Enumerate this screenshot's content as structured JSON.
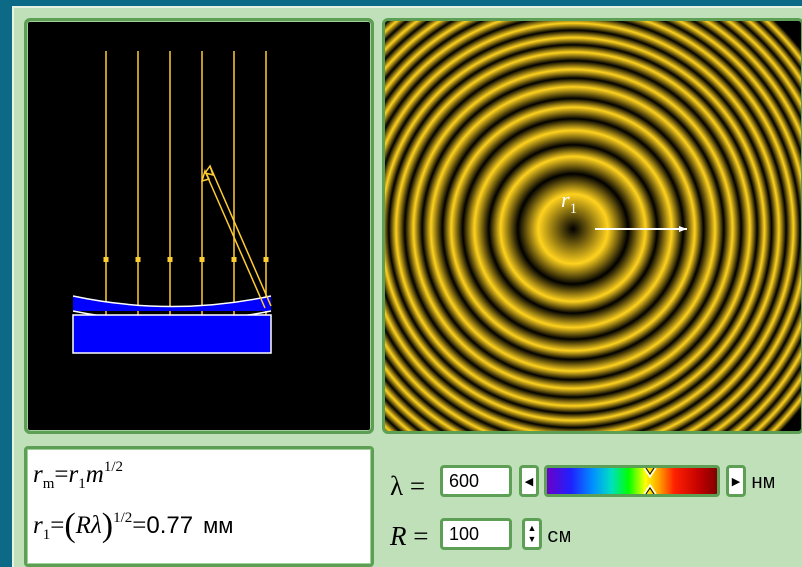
{
  "formula": {
    "r_sym": "r",
    "m_sub": "m",
    "eq": "=",
    "r1_sym": "r",
    "one_sub": "1",
    "m_sym": "m",
    "half_exp": "1/2",
    "r_sym_2": "r",
    "one_sub_2": "1",
    "eq_2": "=",
    "open_paren": "(",
    "R_lambda": "Rλ",
    "close_paren": ")",
    "half_exp_2": "1/2",
    "eq_3": "=",
    "value": "0.77",
    "unit": "мм"
  },
  "rings_label": {
    "r": "r",
    "sub": "1"
  },
  "controls": {
    "lambda": {
      "label": "λ =",
      "value": "600",
      "unit": "нм",
      "left_arrow": "◀",
      "right_arrow": "▶"
    },
    "R": {
      "label_symbol": "R",
      "label_eq": " =",
      "value": "100",
      "unit": "см",
      "up": "▲",
      "down": "▼"
    }
  },
  "colors": {
    "background": "#0d6a86",
    "panel": "#bfe0b8",
    "border": "#5da055",
    "ring": "#ffd21e",
    "lens": "#0000ff",
    "ray": "#ffcc33"
  }
}
